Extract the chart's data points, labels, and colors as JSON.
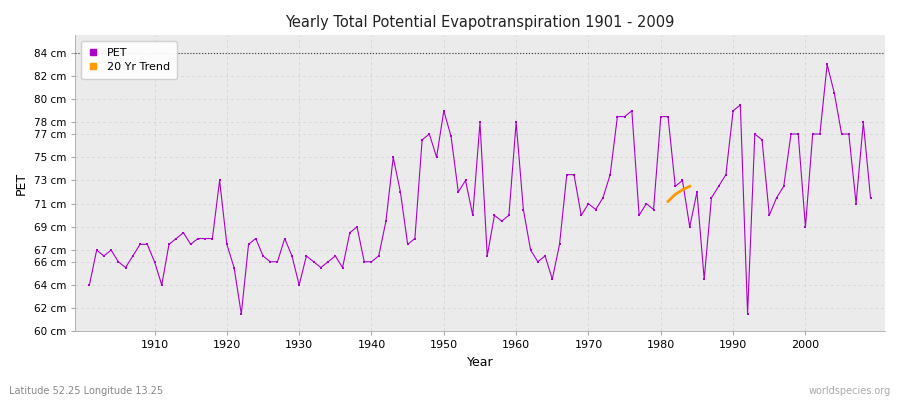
{
  "title": "Yearly Total Potential Evapotranspiration 1901 - 2009",
  "xlabel": "Year",
  "ylabel": "PET",
  "subtitle_left": "Latitude 52.25 Longitude 13.25",
  "subtitle_right": "worldspecies.org",
  "ylim": [
    60,
    85.5
  ],
  "yticks": [
    60,
    62,
    64,
    66,
    67,
    69,
    71,
    73,
    75,
    77,
    78,
    80,
    82,
    84
  ],
  "ytick_labels": [
    "60 cm",
    "62 cm",
    "64 cm",
    "66 cm",
    "67 cm",
    "69 cm",
    "71 cm",
    "73 cm",
    "75 cm",
    "77 cm",
    "78 cm",
    "80 cm",
    "82 cm",
    "84 cm"
  ],
  "xlim": [
    1899,
    2011
  ],
  "xticks": [
    1910,
    1920,
    1930,
    1940,
    1950,
    1960,
    1970,
    1980,
    1990,
    2000
  ],
  "bg_color": "#ffffff",
  "plot_bg_color": "#ebebeb",
  "line_color": "#aa00cc",
  "trend_color": "#ff9900",
  "dotted_line_y": 84,
  "pet_data": {
    "years": [
      1901,
      1902,
      1903,
      1904,
      1905,
      1906,
      1907,
      1908,
      1909,
      1910,
      1911,
      1912,
      1913,
      1914,
      1915,
      1916,
      1917,
      1918,
      1919,
      1920,
      1921,
      1922,
      1923,
      1924,
      1925,
      1926,
      1927,
      1928,
      1929,
      1930,
      1931,
      1932,
      1933,
      1934,
      1935,
      1936,
      1937,
      1938,
      1939,
      1940,
      1941,
      1942,
      1943,
      1944,
      1945,
      1946,
      1947,
      1948,
      1949,
      1950,
      1951,
      1952,
      1953,
      1954,
      1955,
      1956,
      1957,
      1958,
      1959,
      1960,
      1961,
      1962,
      1963,
      1964,
      1965,
      1966,
      1967,
      1968,
      1969,
      1970,
      1971,
      1972,
      1973,
      1974,
      1975,
      1976,
      1977,
      1978,
      1979,
      1980,
      1981,
      1982,
      1983,
      1984,
      1985,
      1986,
      1987,
      1988,
      1989,
      1990,
      1991,
      1992,
      1993,
      1994,
      1995,
      1996,
      1997,
      1998,
      1999,
      2000,
      2001,
      2002,
      2003,
      2004,
      2005,
      2006,
      2007,
      2008,
      2009
    ],
    "values": [
      64.0,
      67.0,
      66.5,
      67.0,
      66.0,
      65.5,
      66.5,
      67.5,
      67.5,
      66.0,
      64.0,
      67.5,
      68.0,
      68.5,
      67.5,
      68.0,
      68.0,
      68.0,
      73.0,
      67.5,
      65.5,
      61.5,
      67.5,
      68.0,
      66.5,
      66.0,
      66.0,
      68.0,
      66.5,
      64.0,
      66.5,
      66.0,
      65.5,
      66.0,
      66.5,
      65.5,
      68.5,
      69.0,
      66.0,
      66.0,
      66.5,
      69.5,
      75.0,
      72.0,
      67.5,
      68.0,
      76.5,
      77.0,
      75.0,
      79.0,
      76.8,
      72.0,
      73.0,
      70.0,
      78.0,
      66.5,
      70.0,
      69.5,
      70.0,
      78.0,
      70.5,
      67.0,
      66.0,
      66.5,
      64.5,
      67.5,
      73.5,
      73.5,
      70.0,
      71.0,
      70.5,
      71.5,
      73.5,
      78.5,
      78.5,
      79.0,
      70.0,
      71.0,
      70.5,
      78.5,
      78.5,
      72.5,
      73.0,
      69.0,
      72.0,
      64.5,
      71.5,
      72.5,
      73.5,
      79.0,
      79.5,
      61.5,
      77.0,
      76.5,
      70.0,
      71.5,
      72.5,
      77.0,
      77.0,
      69.0,
      77.0,
      77.0,
      83.0,
      80.5,
      77.0,
      77.0,
      71.0,
      78.0,
      71.5
    ]
  },
  "trend_data": {
    "years": [
      1981,
      1982,
      1983,
      1984
    ],
    "values": [
      71.2,
      71.8,
      72.2,
      72.5
    ]
  },
  "grid_color": "#d0d0d0",
  "vgrid_color": "#d0d0d0"
}
